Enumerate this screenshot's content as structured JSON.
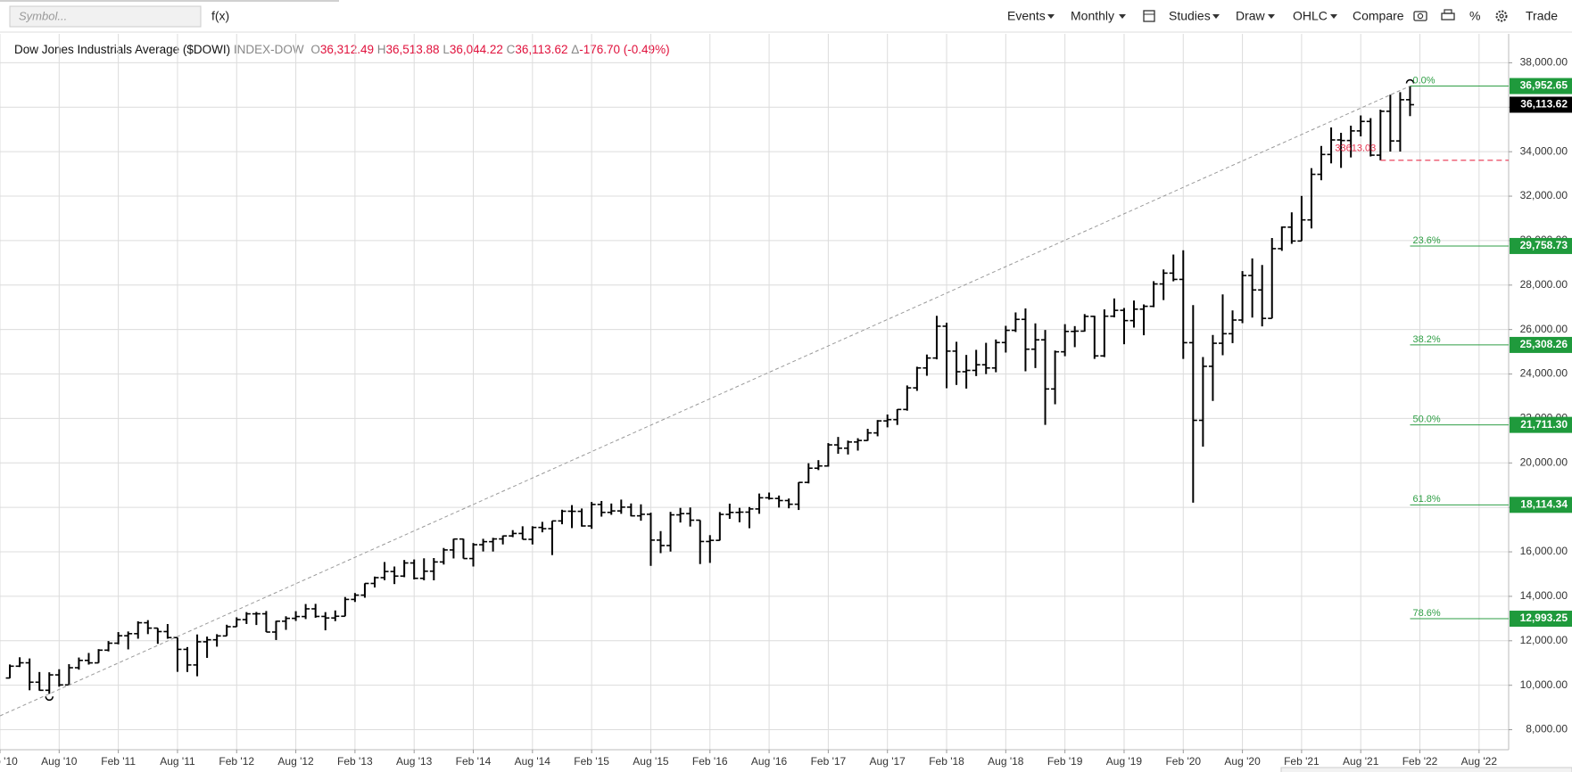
{
  "toolbar": {
    "symbol_placeholder": "Symbol...",
    "formula": "f(x)",
    "events": "Events",
    "period": "Monthly",
    "studies": "Studies",
    "draw": "Draw",
    "chart_style": "OHLC",
    "compare": "Compare",
    "percent": "%",
    "trade": "Trade"
  },
  "header": {
    "name": "Dow Jones Industrials Average ($DOWI)",
    "exchange": "INDEX-DOW",
    "open_key": "O",
    "open": "36,312.49",
    "high_key": "H",
    "high": "36,513.88",
    "low_key": "L",
    "low": "36,044.22",
    "close_key": "C",
    "close": "36,113.62",
    "change_key": "Δ",
    "change": "-176.70 (-0.49%)"
  },
  "chart_data": {
    "type": "ohlc",
    "color": "#000000",
    "grid": true,
    "xlim": [
      "2010-02",
      "2022-11"
    ],
    "ylim": [
      7100,
      39300
    ],
    "xticks": [
      {
        "value": "2010-02",
        "label": "Feb '10"
      },
      {
        "value": "2010-08",
        "label": "Aug '10"
      },
      {
        "value": "2011-02",
        "label": "Feb '11"
      },
      {
        "value": "2011-08",
        "label": "Aug '11"
      },
      {
        "value": "2012-02",
        "label": "Feb '12"
      },
      {
        "value": "2012-08",
        "label": "Aug '12"
      },
      {
        "value": "2013-02",
        "label": "Feb '13"
      },
      {
        "value": "2013-08",
        "label": "Aug '13"
      },
      {
        "value": "2014-02",
        "label": "Feb '14"
      },
      {
        "value": "2014-08",
        "label": "Aug '14"
      },
      {
        "value": "2015-02",
        "label": "Feb '15"
      },
      {
        "value": "2015-08",
        "label": "Aug '15"
      },
      {
        "value": "2016-02",
        "label": "Feb '16"
      },
      {
        "value": "2016-08",
        "label": "Aug '16"
      },
      {
        "value": "2017-02",
        "label": "Feb '17"
      },
      {
        "value": "2017-08",
        "label": "Aug '17"
      },
      {
        "value": "2018-02",
        "label": "Feb '18"
      },
      {
        "value": "2018-08",
        "label": "Aug '18"
      },
      {
        "value": "2019-02",
        "label": "Feb '19"
      },
      {
        "value": "2019-08",
        "label": "Aug '19"
      },
      {
        "value": "2020-02",
        "label": "Feb '20"
      },
      {
        "value": "2020-08",
        "label": "Aug '20"
      },
      {
        "value": "2021-02",
        "label": "Feb '21"
      },
      {
        "value": "2021-08",
        "label": "Aug '21"
      },
      {
        "value": "2022-02",
        "label": "Feb '22"
      },
      {
        "value": "2022-08",
        "label": "Aug '22"
      }
    ],
    "yticks": [
      {
        "value": 8000,
        "label": "8,000.00"
      },
      {
        "value": 10000,
        "label": "10,000.00"
      },
      {
        "value": 12000,
        "label": "12,000.00"
      },
      {
        "value": 14000,
        "label": "14,000.00"
      },
      {
        "value": 16000,
        "label": "16,000.00"
      },
      {
        "value": 18000,
        "label": "18,000.00"
      },
      {
        "value": 20000,
        "label": "20,000.00"
      },
      {
        "value": 22000,
        "label": "22,000.00"
      },
      {
        "value": 24000,
        "label": "24,000.00"
      },
      {
        "value": 26000,
        "label": "26,000.00"
      },
      {
        "value": 28000,
        "label": "28,000.00"
      },
      {
        "value": 30000,
        "label": "30,000.00"
      },
      {
        "value": 32000,
        "label": "32,000.00"
      },
      {
        "value": 34000,
        "label": "34,000.00"
      },
      {
        "value": 36000,
        "label": "36,000.00"
      },
      {
        "value": 38000,
        "label": "38,000.00"
      }
    ],
    "x": [
      "2010-03",
      "2010-04",
      "2010-05",
      "2010-06",
      "2010-07",
      "2010-08",
      "2010-09",
      "2010-10",
      "2010-11",
      "2010-12",
      "2011-01",
      "2011-02",
      "2011-03",
      "2011-04",
      "2011-05",
      "2011-06",
      "2011-07",
      "2011-08",
      "2011-09",
      "2011-10",
      "2011-11",
      "2011-12",
      "2012-01",
      "2012-02",
      "2012-03",
      "2012-04",
      "2012-05",
      "2012-06",
      "2012-07",
      "2012-08",
      "2012-09",
      "2012-10",
      "2012-11",
      "2012-12",
      "2013-01",
      "2013-02",
      "2013-03",
      "2013-04",
      "2013-05",
      "2013-06",
      "2013-07",
      "2013-08",
      "2013-09",
      "2013-10",
      "2013-11",
      "2013-12",
      "2014-01",
      "2014-02",
      "2014-03",
      "2014-04",
      "2014-05",
      "2014-06",
      "2014-07",
      "2014-08",
      "2014-09",
      "2014-10",
      "2014-11",
      "2014-12",
      "2015-01",
      "2015-02",
      "2015-03",
      "2015-04",
      "2015-05",
      "2015-06",
      "2015-07",
      "2015-08",
      "2015-09",
      "2015-10",
      "2015-11",
      "2015-12",
      "2016-01",
      "2016-02",
      "2016-03",
      "2016-04",
      "2016-05",
      "2016-06",
      "2016-07",
      "2016-08",
      "2016-09",
      "2016-10",
      "2016-11",
      "2016-12",
      "2017-01",
      "2017-02",
      "2017-03",
      "2017-04",
      "2017-05",
      "2017-06",
      "2017-07",
      "2017-08",
      "2017-09",
      "2017-10",
      "2017-11",
      "2017-12",
      "2018-01",
      "2018-02",
      "2018-03",
      "2018-04",
      "2018-05",
      "2018-06",
      "2018-07",
      "2018-08",
      "2018-09",
      "2018-10",
      "2018-11",
      "2018-12",
      "2019-01",
      "2019-02",
      "2019-03",
      "2019-04",
      "2019-05",
      "2019-06",
      "2019-07",
      "2019-08",
      "2019-09",
      "2019-10",
      "2019-11",
      "2019-12",
      "2020-01",
      "2020-02",
      "2020-03",
      "2020-04",
      "2020-05",
      "2020-06",
      "2020-07",
      "2020-08",
      "2020-09",
      "2020-10",
      "2020-11",
      "2020-12",
      "2021-01",
      "2021-02",
      "2021-03",
      "2021-04",
      "2021-05",
      "2021-06",
      "2021-07",
      "2021-08",
      "2021-09",
      "2021-10",
      "2021-11",
      "2021-12",
      "2022-01"
    ],
    "open": [
      10325,
      10857,
      11009,
      10137,
      9774,
      10466,
      10015,
      10788,
      11118,
      11006,
      11578,
      11892,
      12226,
      12320,
      12811,
      12570,
      12414,
      12143,
      11614,
      10913,
      11955,
      12046,
      12218,
      12633,
      12952,
      13212,
      13214,
      12393,
      12880,
      13009,
      13091,
      13437,
      13096,
      13026,
      13104,
      13861,
      14054,
      14579,
      14840,
      15116,
      14910,
      15500,
      14810,
      15130,
      15546,
      16086,
      16577,
      15699,
      16322,
      16458,
      16581,
      16717,
      16827,
      16563,
      17098,
      17043,
      17391,
      17828,
      17823,
      17165,
      18133,
      17776,
      17841,
      18011,
      17620,
      17690,
      16528,
      16285,
      17664,
      17720,
      17425,
      16466,
      16517,
      17685,
      17774,
      17787,
      17930,
      18432,
      18401,
      18308,
      18142,
      19124,
      19763,
      19864,
      20812,
      20663,
      20941,
      21009,
      21350,
      21891,
      21948,
      22405,
      23377,
      24272,
      24719,
      26149,
      25029,
      24103,
      24163,
      24416,
      24271,
      25415,
      25965,
      26458,
      25116,
      25538,
      23327,
      24999,
      25916,
      25929,
      26593,
      24815,
      26600,
      26864,
      26403,
      26917,
      27046,
      28051,
      28538,
      28256,
      25409,
      21917,
      24346,
      25383,
      25813,
      26428,
      28430,
      27782,
      26502,
      29639,
      30606,
      29983,
      30932,
      32982,
      33875,
      34529,
      34503,
      34935,
      35361,
      33844,
      35820,
      34484,
      36338
    ],
    "high": [
      10935,
      11258,
      11205,
      10595,
      10583,
      10720,
      10948,
      11247,
      11452,
      11625,
      11988,
      12391,
      12419,
      12876,
      12929,
      12570,
      12753,
      12143,
      11717,
      12284,
      12188,
      12297,
      12722,
      13056,
      13290,
      13297,
      13338,
      12898,
      13103,
      13331,
      13653,
      13661,
      13290,
      13365,
      13969,
      14149,
      14585,
      14888,
      15542,
      15341,
      15634,
      15658,
      15710,
      15722,
      16175,
      16588,
      16588,
      16398,
      16588,
      16632,
      16736,
      16978,
      17151,
      17153,
      17350,
      17395,
      17895,
      18103,
      17951,
      18244,
      18289,
      18175,
      18351,
      18178,
      18138,
      17763,
      16934,
      17799,
      17978,
      17997,
      17425,
      16752,
      17790,
      18168,
      17980,
      18016,
      18623,
      18668,
      18534,
      18400,
      19135,
      19987,
      20126,
      20892,
      21169,
      21006,
      21113,
      21535,
      21929,
      22179,
      22420,
      23485,
      24328,
      24876,
      26617,
      26307,
      25450,
      24858,
      25087,
      25403,
      25553,
      26168,
      26770,
      26951,
      26278,
      25981,
      25056,
      26242,
      26155,
      26696,
      26620,
      26907,
      27399,
      26970,
      27306,
      27130,
      28175,
      28702,
      29374,
      29568,
      27102,
      24765,
      25758,
      27581,
      26860,
      28630,
      29199,
      28902,
      30116,
      30637,
      31272,
      32010,
      33259,
      34257,
      35092,
      34850,
      35171,
      35631,
      35510,
      35892,
      36565,
      36679,
      36952.65
    ],
    "low": [
      10315,
      10820,
      9774,
      9757,
      9614,
      9937,
      9988,
      10700,
      10929,
      11006,
      11522,
      11840,
      11613,
      12093,
      12300,
      11862,
      12092,
      10604,
      10597,
      10404,
      11231,
      11735,
      12218,
      12626,
      12756,
      12710,
      12393,
      12035,
      12492,
      12892,
      12977,
      13036,
      12471,
      12883,
      13104,
      13746,
      13937,
      14399,
      14725,
      14551,
      14860,
      14760,
      14720,
      14719,
      15430,
      15703,
      15699,
      15341,
      16017,
      16015,
      16334,
      16660,
      16559,
      16333,
      16879,
      15855,
      17241,
      17068,
      17136,
      17037,
      17585,
      17667,
      17711,
      17596,
      17400,
      15370,
      15942,
      16013,
      17319,
      17138,
      15451,
      15503,
      16511,
      17485,
      17331,
      17063,
      17713,
      18348,
      17992,
      17959,
      17884,
      19079,
      19678,
      19832,
      20412,
      20380,
      20554,
      20997,
      21198,
      21600,
      21709,
      22350,
      23242,
      23921,
      24660,
      23360,
      23509,
      23345,
      23908,
      23997,
      24078,
      24965,
      25889,
      24123,
      24268,
      21713,
      22639,
      24800,
      25208,
      25910,
      24680,
      24760,
      26547,
      25339,
      26087,
      25743,
      27005,
      27325,
      28169,
      24681,
      18214,
      20735,
      22789,
      24843,
      25389,
      26287,
      26537,
      26144,
      26502,
      29540,
      29856,
      29983,
      30547,
      32716,
      33474,
      33271,
      33741,
      34690,
      33785,
      33613.03,
      34006,
      34006,
      35600
    ],
    "close": [
      10857,
      11009,
      10137,
      9774,
      10466,
      10015,
      10788,
      11118,
      11006,
      11578,
      11892,
      12226,
      12320,
      12811,
      12570,
      12414,
      12143,
      11614,
      10913,
      11955,
      12046,
      12218,
      12633,
      12952,
      13212,
      13214,
      12393,
      12880,
      13009,
      13091,
      13437,
      13096,
      13026,
      13104,
      13861,
      14054,
      14579,
      14840,
      15116,
      14910,
      15500,
      14810,
      15130,
      15546,
      16086,
      16577,
      15699,
      16322,
      16458,
      16581,
      16717,
      16827,
      16563,
      17098,
      17043,
      17391,
      17828,
      17823,
      17165,
      18133,
      17776,
      17841,
      18011,
      17620,
      17690,
      16528,
      16285,
      17664,
      17720,
      17425,
      16466,
      16517,
      17685,
      17774,
      17787,
      17930,
      18432,
      18401,
      18308,
      18142,
      19124,
      19763,
      19864,
      20812,
      20663,
      20941,
      21009,
      21350,
      21891,
      21948,
      22405,
      23377,
      24272,
      24719,
      26149,
      25029,
      24103,
      24163,
      24416,
      24271,
      25415,
      25965,
      26458,
      25116,
      25538,
      23327,
      24999,
      25916,
      25929,
      26593,
      24815,
      26600,
      26864,
      26403,
      26917,
      27046,
      28051,
      28538,
      28256,
      25409,
      21917,
      24346,
      25383,
      25813,
      26428,
      28430,
      27782,
      26502,
      29639,
      30606,
      29983,
      30932,
      32982,
      33875,
      34529,
      34503,
      34935,
      35361,
      33844,
      35820,
      34484,
      36338,
      36113.62
    ],
    "last_price_label": "36,113.62",
    "trendline": {
      "x": [
        "2010-07",
        "2022-01"
      ],
      "values": [
        9614,
        36952.65
      ]
    },
    "support_line": {
      "x": "2021-10",
      "value": 33613.03,
      "label": "33613.03"
    },
    "fibonacci_color": "#2e9e44",
    "fibonacci": [
      {
        "label": "0.0%",
        "value": 36952.65,
        "value_label": "36,952.65"
      },
      {
        "label": "23.6%",
        "value": 29758.73,
        "value_label": "29,758.73"
      },
      {
        "label": "38.2%",
        "value": 25308.26,
        "value_label": "25,308.26"
      },
      {
        "label": "50.0%",
        "value": 21711.3,
        "value_label": "21,711.30"
      },
      {
        "label": "61.8%",
        "value": 18114.34,
        "value_label": "18,114.34"
      },
      {
        "label": "78.6%",
        "value": 12993.25,
        "value_label": "12,993.25"
      }
    ]
  }
}
